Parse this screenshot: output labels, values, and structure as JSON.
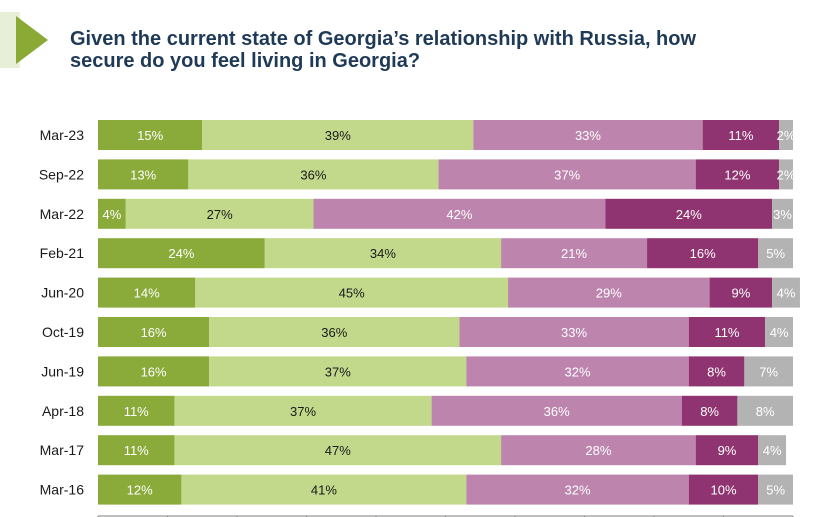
{
  "title_lines": [
    "Given the current state of Georgia’s relationship with Russia, how",
    "secure do you feel living in Georgia?"
  ],
  "colors": {
    "accent_triangle": "#8aaa35",
    "accent_triangle_light": "#d9e6bf",
    "title": "#1f3a57",
    "segments": [
      "#8aaa3a",
      "#c2d98c",
      "#bd85ae",
      "#8f3470",
      "#b3b3b3"
    ],
    "label_colors": [
      "#ffffff",
      "#1a1a1a",
      "#ffffff",
      "#ffffff",
      "#ffffff"
    ],
    "axis": "#7f7f7f"
  },
  "chart_data": {
    "type": "bar",
    "orientation": "horizontal",
    "stacked": true,
    "xlim": [
      0,
      100
    ],
    "categories": [
      "Mar-23",
      "Sep-22",
      "Mar-22",
      "Feb-21",
      "Jun-20",
      "Oct-19",
      "Jun-19",
      "Apr-18",
      "Mar-17",
      "Mar-16"
    ],
    "series": [
      {
        "values": [
          15,
          13,
          4,
          24,
          14,
          16,
          16,
          11,
          11,
          12
        ]
      },
      {
        "values": [
          39,
          36,
          27,
          34,
          45,
          36,
          37,
          37,
          47,
          41
        ]
      },
      {
        "values": [
          33,
          37,
          42,
          21,
          29,
          33,
          32,
          36,
          28,
          32
        ]
      },
      {
        "values": [
          11,
          12,
          24,
          16,
          9,
          11,
          8,
          8,
          9,
          10
        ]
      },
      {
        "values": [
          2,
          2,
          3,
          5,
          4,
          4,
          7,
          8,
          4,
          5
        ]
      }
    ]
  }
}
